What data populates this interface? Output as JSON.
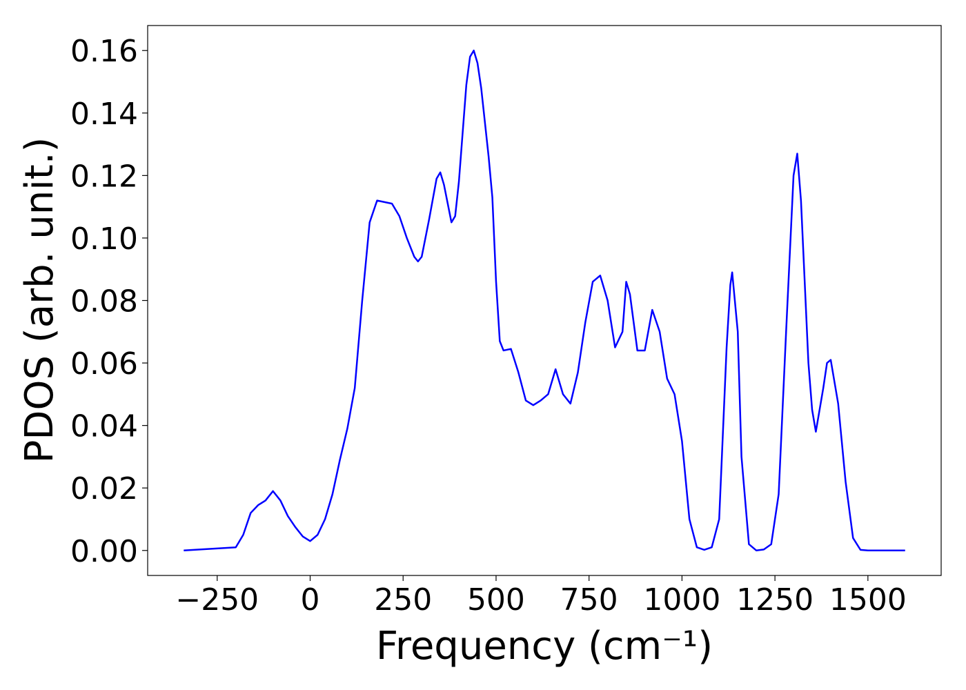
{
  "chart_data": {
    "type": "line",
    "x_label": "Frequency (cm⁻¹)",
    "y_label": "PDOS (arb. unit.)",
    "x": [
      -340,
      -200,
      -180,
      -160,
      -140,
      -120,
      -100,
      -80,
      -60,
      -40,
      -20,
      0,
      20,
      40,
      60,
      80,
      100,
      120,
      140,
      160,
      180,
      200,
      220,
      240,
      260,
      280,
      290,
      300,
      320,
      340,
      350,
      360,
      380,
      390,
      400,
      420,
      430,
      440,
      450,
      460,
      480,
      490,
      500,
      510,
      520,
      540,
      560,
      580,
      600,
      620,
      640,
      660,
      680,
      700,
      720,
      740,
      760,
      780,
      800,
      820,
      840,
      850,
      860,
      880,
      900,
      920,
      940,
      960,
      980,
      1000,
      1020,
      1040,
      1060,
      1080,
      1100,
      1120,
      1130,
      1135,
      1150,
      1160,
      1180,
      1200,
      1220,
      1240,
      1260,
      1280,
      1300,
      1310,
      1320,
      1340,
      1350,
      1360,
      1380,
      1390,
      1400,
      1420,
      1440,
      1460,
      1480,
      1500,
      1600
    ],
    "series": [
      {
        "color": "#0000ff",
        "values": [
          0,
          0.001,
          0.005,
          0.012,
          0.0145,
          0.016,
          0.019,
          0.016,
          0.011,
          0.0075,
          0.0045,
          0.003,
          0.005,
          0.01,
          0.018,
          0.029,
          0.039,
          0.052,
          0.08,
          0.105,
          0.112,
          0.1115,
          0.111,
          0.107,
          0.1,
          0.094,
          0.0925,
          0.094,
          0.106,
          0.119,
          0.121,
          0.117,
          0.105,
          0.107,
          0.118,
          0.149,
          0.158,
          0.16,
          0.156,
          0.148,
          0.126,
          0.113,
          0.086,
          0.067,
          0.064,
          0.0645,
          0.057,
          0.048,
          0.0465,
          0.048,
          0.05,
          0.058,
          0.05,
          0.047,
          0.057,
          0.073,
          0.086,
          0.088,
          0.08,
          0.065,
          0.07,
          0.086,
          0.082,
          0.064,
          0.064,
          0.077,
          0.07,
          0.055,
          0.05,
          0.035,
          0.01,
          0.001,
          0.0002,
          0.001,
          0.01,
          0.065,
          0.085,
          0.089,
          0.07,
          0.03,
          0.002,
          0,
          0.0003,
          0.002,
          0.018,
          0.07,
          0.12,
          0.127,
          0.112,
          0.06,
          0.045,
          0.038,
          0.052,
          0.06,
          0.061,
          0.047,
          0.022,
          0.004,
          0.0002,
          0,
          0
        ]
      }
    ],
    "xlim": [
      -437,
      1697
    ],
    "ylim": [
      -0.008,
      0.168
    ],
    "xticks": [
      {
        "value": -250,
        "label": "−250"
      },
      0,
      250,
      500,
      750,
      1000,
      1250,
      1500
    ],
    "yticks": [
      {
        "value": 0,
        "label": "0.00"
      },
      {
        "value": 0.02,
        "label": "0.02"
      },
      {
        "value": 0.04,
        "label": "0.04"
      },
      {
        "value": 0.06,
        "label": "0.06"
      },
      {
        "value": 0.08,
        "label": "0.08"
      },
      {
        "value": 0.1,
        "label": "0.10"
      },
      {
        "value": 0.12,
        "label": "0.12"
      },
      {
        "value": 0.14,
        "label": "0.14"
      },
      {
        "value": 0.16,
        "label": "0.16"
      }
    ]
  }
}
